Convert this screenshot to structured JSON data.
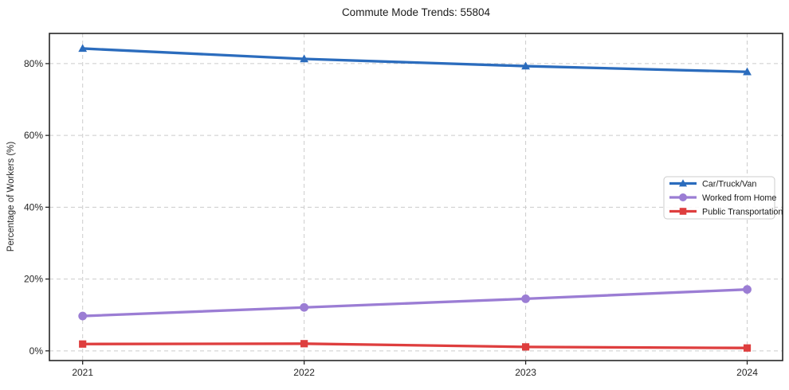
{
  "figure": {
    "background": "#ffffff"
  },
  "chart_data": {
    "type": "line",
    "title": "Commute Mode Trends: 55804",
    "xlabel": "",
    "ylabel": "Percentage of Workers (%)",
    "x": [
      2021,
      2022,
      2023,
      2024
    ],
    "x_tick_labels": [
      "2021",
      "2022",
      "2023",
      "2024"
    ],
    "y_ticks": [
      0,
      20,
      40,
      60,
      80
    ],
    "y_tick_labels": [
      "0%",
      "20%",
      "40%",
      "60%",
      "80%"
    ],
    "xlim": [
      2020.85,
      2024.16
    ],
    "ylim": [
      -2.7,
      88.4
    ],
    "grid": {
      "show": true,
      "style": "dashed",
      "color": "#cccccc",
      "axes": "both"
    },
    "axis_color": "#262626",
    "legend": {
      "position": "center-right",
      "border_color": "#cccccc",
      "background": "#ffffff"
    },
    "series": [
      {
        "name": "Car/Truck/Van",
        "marker": "triangle",
        "color": "#2b6cbd",
        "values": [
          84.2,
          81.3,
          79.3,
          77.7
        ]
      },
      {
        "name": "Worked from Home",
        "marker": "circle",
        "color": "#9b7dd4",
        "values": [
          9.7,
          12.1,
          14.5,
          17.1
        ]
      },
      {
        "name": "Public Transportation",
        "marker": "square",
        "color": "#de3e3e",
        "values": [
          1.9,
          2.0,
          1.1,
          0.8
        ]
      }
    ]
  }
}
